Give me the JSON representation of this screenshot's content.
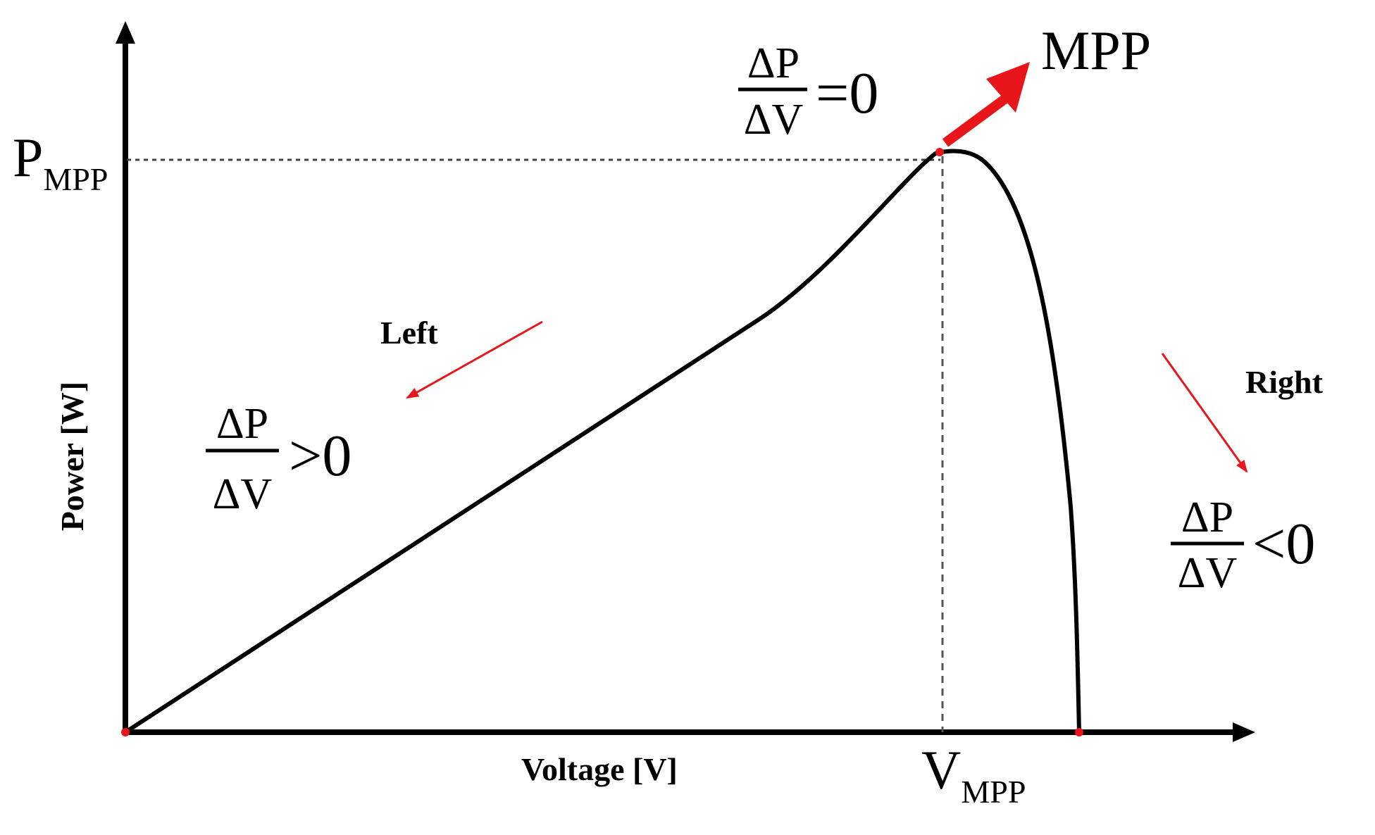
{
  "axes": {
    "x_label": "Voltage [V]",
    "y_label": "Power [W]"
  },
  "labels": {
    "p_mpp_main": "P",
    "p_mpp_sub": "MPP",
    "v_mpp_main": "V",
    "v_mpp_sub": "MPP",
    "mpp": "MPP",
    "left": "Left",
    "right": "Right"
  },
  "equations": {
    "numerator": "ΔP",
    "denominator": "ΔV",
    "at_mpp": "=0",
    "left_side": ">0",
    "right_side": "<0"
  },
  "colors": {
    "curve": "#000000",
    "axes": "#000000",
    "arrows": "#e8161b",
    "guides": "#444444"
  }
}
